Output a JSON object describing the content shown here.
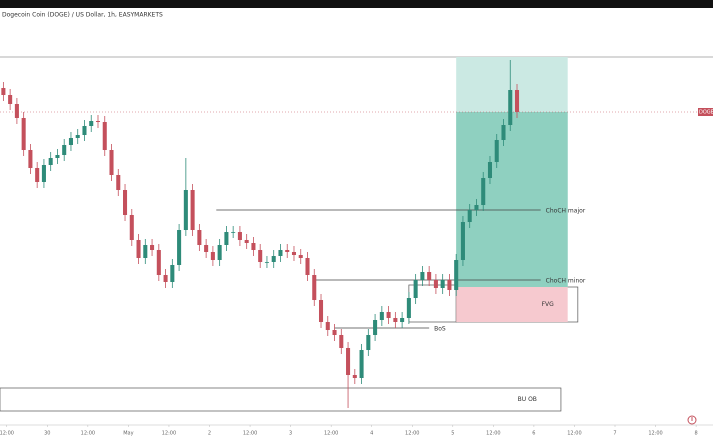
{
  "chart_data": {
    "type": "candlestick",
    "title": "Dogecoin Coin (DOGE) / US Dollar, 1h, EASYMARKETS",
    "price_tag": "DOGEU",
    "x": [
      0,
      2,
      4,
      6,
      8,
      10,
      12,
      14,
      16,
      18,
      20,
      22,
      24,
      26,
      28,
      30,
      32,
      34,
      36,
      38,
      40,
      42,
      44,
      46,
      48,
      50,
      52,
      54,
      56,
      58,
      60,
      62,
      64,
      66,
      68,
      70,
      72,
      74,
      76,
      78,
      80,
      82,
      84,
      86,
      88,
      90,
      92,
      94,
      96,
      98,
      100,
      102,
      104,
      106,
      108,
      110,
      112,
      114,
      116,
      118,
      120,
      122,
      124,
      126,
      128,
      130,
      132,
      134,
      136,
      138,
      140,
      142,
      144,
      146,
      148,
      150,
      152
    ],
    "open": [
      342,
      335,
      326,
      312,
      280,
      262,
      248,
      265,
      272,
      275,
      285,
      292,
      295,
      304,
      309,
      308,
      280,
      255,
      240,
      215,
      190,
      172,
      185,
      180,
      155,
      148,
      165,
      200,
      240,
      200,
      185,
      178,
      170,
      185,
      198,
      198,
      190,
      187,
      180,
      168,
      168,
      174,
      180,
      178,
      175,
      172,
      155,
      130,
      108,
      100,
      95,
      82,
      55,
      52,
      80,
      95,
      110,
      118,
      112,
      108,
      112,
      132,
      150,
      158,
      150,
      142,
      150,
      140,
      170,
      208,
      220,
      225,
      252,
      268,
      290,
      305,
      340
    ],
    "high": [
      348,
      341,
      332,
      318,
      286,
      268,
      271,
      278,
      281,
      291,
      298,
      301,
      310,
      315,
      315,
      314,
      286,
      261,
      246,
      221,
      196,
      191,
      191,
      186,
      161,
      171,
      206,
      272,
      246,
      206,
      191,
      184,
      191,
      204,
      204,
      204,
      196,
      193,
      186,
      174,
      180,
      186,
      186,
      184,
      181,
      178,
      161,
      136,
      114,
      106,
      101,
      88,
      61,
      86,
      101,
      116,
      124,
      124,
      118,
      118,
      138,
      156,
      164,
      164,
      156,
      156,
      156,
      176,
      214,
      226,
      231,
      258,
      274,
      296,
      311,
      370,
      346
    ],
    "low": [
      329,
      320,
      306,
      274,
      256,
      242,
      242,
      259,
      266,
      269,
      279,
      286,
      289,
      298,
      302,
      274,
      249,
      234,
      209,
      184,
      166,
      166,
      174,
      149,
      142,
      142,
      159,
      194,
      194,
      179,
      172,
      164,
      164,
      179,
      192,
      184,
      181,
      174,
      162,
      162,
      162,
      168,
      172,
      169,
      166,
      149,
      124,
      102,
      94,
      89,
      76,
      22,
      46,
      46,
      74,
      89,
      104,
      106,
      102,
      102,
      106,
      126,
      144,
      144,
      136,
      136,
      134,
      134,
      164,
      202,
      214,
      219,
      246,
      262,
      284,
      299,
      312
    ],
    "close": [
      335,
      326,
      312,
      280,
      262,
      248,
      265,
      272,
      275,
      285,
      292,
      295,
      304,
      309,
      308,
      280,
      255,
      240,
      215,
      190,
      172,
      185,
      180,
      155,
      148,
      165,
      200,
      240,
      200,
      185,
      178,
      170,
      185,
      198,
      198,
      190,
      187,
      180,
      168,
      168,
      174,
      180,
      178,
      175,
      172,
      155,
      130,
      108,
      100,
      95,
      82,
      55,
      52,
      80,
      95,
      110,
      118,
      112,
      108,
      112,
      132,
      150,
      158,
      150,
      142,
      150,
      140,
      170,
      208,
      220,
      225,
      252,
      268,
      290,
      305,
      340,
      318
    ],
    "up_color": "#2e8b79",
    "down_color": "#c4505c",
    "xlim": [
      -1,
      210
    ],
    "ylim": [
      5,
      422
    ],
    "xticks": [
      {
        "value": 1,
        "label": "12:00"
      },
      {
        "value": 13,
        "label": "30"
      },
      {
        "value": 25,
        "label": "12:00"
      },
      {
        "value": 37,
        "label": "May"
      },
      {
        "value": 49,
        "label": "12:00"
      },
      {
        "value": 61,
        "label": "2"
      },
      {
        "value": 73,
        "label": "12:00"
      },
      {
        "value": 85,
        "label": "3"
      },
      {
        "value": 97,
        "label": "12:00"
      },
      {
        "value": 109,
        "label": "4"
      },
      {
        "value": 121,
        "label": "12:00"
      },
      {
        "value": 133,
        "label": "5"
      },
      {
        "value": 145,
        "label": "12:00"
      },
      {
        "value": 157,
        "label": "6"
      },
      {
        "value": 169,
        "label": "12:00"
      },
      {
        "value": 181,
        "label": "7"
      },
      {
        "value": 193,
        "label": "12:00"
      },
      {
        "value": 205,
        "label": "8"
      }
    ],
    "levels": [
      {
        "label": "ChoCH major",
        "value": 220,
        "x": [
          63,
          159
        ]
      },
      {
        "label": "ChoCH minor",
        "value": 150,
        "x": [
          92,
          159
        ]
      },
      {
        "label": "BoS",
        "value": 102,
        "x": [
          98,
          126
        ]
      }
    ],
    "position": {
      "x": [
        134,
        167
      ],
      "entry": 143,
      "target": 373,
      "stop": 108
    },
    "zones": [
      {
        "label": "FVG",
        "range": [
          108,
          143
        ],
        "x": [
          134,
          170
        ]
      },
      {
        "range": [
          108,
          145
        ],
        "x": [
          120,
          134
        ]
      },
      {
        "label": "BU OB",
        "range": [
          19,
          42
        ],
        "x": [
          -1,
          165
        ]
      }
    ]
  }
}
